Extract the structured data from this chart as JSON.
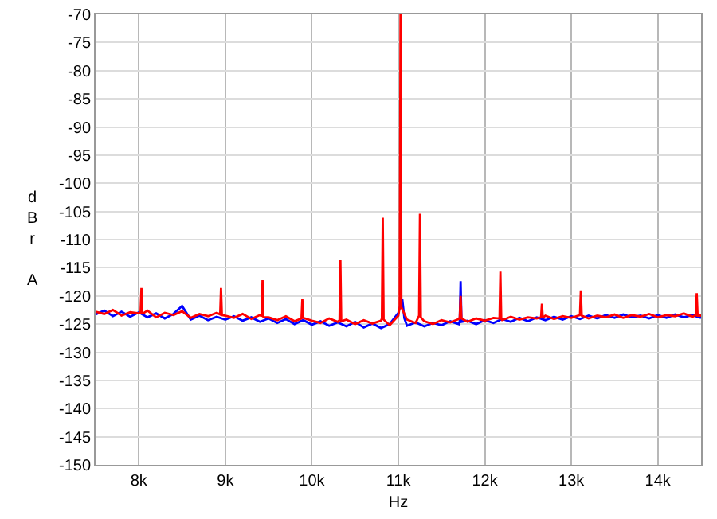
{
  "chart_data": {
    "type": "line",
    "xlabel": "Hz",
    "ylabel": "dBr A",
    "xlim": [
      7500,
      14500
    ],
    "ylim": [
      -150,
      -70
    ],
    "xticks": [
      {
        "value": 8000,
        "label": "8k"
      },
      {
        "value": 9000,
        "label": "9k"
      },
      {
        "value": 10000,
        "label": "10k"
      },
      {
        "value": 11000,
        "label": "11k"
      },
      {
        "value": 12000,
        "label": "12k"
      },
      {
        "value": 13000,
        "label": "13k"
      },
      {
        "value": 14000,
        "label": "14k"
      }
    ],
    "yticks": [
      -150,
      -145,
      -140,
      -135,
      -130,
      -125,
      -120,
      -115,
      -110,
      -105,
      -100,
      -95,
      -90,
      -85,
      -80,
      -75,
      -70
    ],
    "grid": true,
    "marker": "none",
    "line_style": "solid",
    "series": [
      {
        "color": "#0000ff",
        "x": [
          7500,
          7600,
          7700,
          7800,
          7900,
          8000,
          8100,
          8200,
          8300,
          8400,
          8500,
          8600,
          8700,
          8800,
          8900,
          9000,
          9100,
          9200,
          9300,
          9400,
          9500,
          9600,
          9700,
          9800,
          9900,
          10000,
          10100,
          10200,
          10300,
          10400,
          10500,
          10600,
          10700,
          10800,
          10900,
          11000,
          11045,
          11070,
          11100,
          11200,
          11300,
          11400,
          11500,
          11600,
          11700,
          11710,
          11720,
          11730,
          11800,
          11900,
          12000,
          12100,
          12200,
          12300,
          12400,
          12500,
          12600,
          12700,
          12800,
          12900,
          13000,
          13100,
          13200,
          13300,
          13400,
          13500,
          13600,
          13700,
          13800,
          13900,
          14000,
          14100,
          14200,
          14300,
          14400,
          14500
        ],
        "values": [
          -123.3,
          -122.6,
          -123.6,
          -122.8,
          -123.7,
          -122.9,
          -123.8,
          -123.1,
          -124.0,
          -123.2,
          -121.8,
          -124.2,
          -123.5,
          -124.3,
          -123.7,
          -124.2,
          -123.6,
          -124.4,
          -123.8,
          -124.6,
          -124.0,
          -124.8,
          -124.1,
          -125.0,
          -124.3,
          -125.1,
          -124.5,
          -125.3,
          -124.7,
          -125.4,
          -124.6,
          -125.6,
          -124.9,
          -125.7,
          -125.0,
          -123.0,
          -120.5,
          -124.0,
          -125.3,
          -124.7,
          -125.4,
          -124.8,
          -125.2,
          -124.5,
          -125.0,
          -124.5,
          -117.4,
          -124.6,
          -124.4,
          -125.0,
          -124.3,
          -124.8,
          -124.1,
          -124.6,
          -123.9,
          -124.5,
          -123.8,
          -124.3,
          -123.7,
          -124.2,
          -123.6,
          -124.1,
          -123.5,
          -124.0,
          -123.4,
          -123.9,
          -123.3,
          -123.8,
          -123.5,
          -124.0,
          -123.4,
          -123.9,
          -123.3,
          -123.8,
          -123.4,
          -123.9
        ]
      },
      {
        "color": "#ff0000",
        "x": [
          7500,
          7600,
          7700,
          7800,
          7900,
          8000,
          8020,
          8030,
          8040,
          8100,
          8200,
          8300,
          8400,
          8500,
          8600,
          8700,
          8800,
          8900,
          8940,
          8950,
          8960,
          9000,
          9100,
          9200,
          9300,
          9400,
          9420,
          9430,
          9440,
          9500,
          9600,
          9700,
          9800,
          9880,
          9890,
          9900,
          10000,
          10100,
          10200,
          10300,
          10320,
          10330,
          10340,
          10400,
          10500,
          10600,
          10700,
          10800,
          10810,
          10820,
          10830,
          10900,
          11000,
          11015,
          11025,
          11035,
          11100,
          11200,
          11240,
          11250,
          11260,
          11300,
          11400,
          11500,
          11600,
          11700,
          11710,
          11720,
          11730,
          11800,
          11900,
          12000,
          12100,
          12170,
          12180,
          12190,
          12200,
          12300,
          12400,
          12500,
          12600,
          12650,
          12660,
          12670,
          12700,
          12800,
          12900,
          13000,
          13100,
          13110,
          13120,
          13200,
          13300,
          13400,
          13500,
          13600,
          13700,
          13800,
          13900,
          14000,
          14100,
          14200,
          14300,
          14400,
          14440,
          14450,
          14460,
          14500
        ],
        "values": [
          -122.8,
          -123.2,
          -122.5,
          -123.5,
          -122.9,
          -123.1,
          -123.0,
          -118.6,
          -123.2,
          -122.6,
          -123.8,
          -123.0,
          -123.4,
          -122.7,
          -123.9,
          -123.2,
          -123.6,
          -123.0,
          -123.3,
          -118.6,
          -123.4,
          -123.5,
          -123.9,
          -123.2,
          -124.1,
          -123.4,
          -123.6,
          -117.2,
          -123.8,
          -123.8,
          -124.3,
          -123.6,
          -124.5,
          -124.0,
          -120.6,
          -123.9,
          -124.4,
          -124.8,
          -124.0,
          -124.6,
          -124.3,
          -113.6,
          -124.5,
          -124.2,
          -125.0,
          -124.3,
          -124.9,
          -124.4,
          -124.0,
          -106.1,
          -124.2,
          -125.2,
          -123.5,
          -122,
          -70,
          -122,
          -124.2,
          -124.8,
          -123.5,
          -105.4,
          -123.8,
          -124.5,
          -125.0,
          -124.3,
          -124.7,
          -124.1,
          -123.8,
          -120.0,
          -124.0,
          -124.6,
          -124.0,
          -124.4,
          -123.9,
          -124.0,
          -115.7,
          -124.1,
          -124.3,
          -123.7,
          -124.2,
          -123.8,
          -124.0,
          -123.8,
          -121.4,
          -123.9,
          -123.5,
          -124.1,
          -123.6,
          -123.9,
          -123.4,
          -119.0,
          -123.5,
          -124.0,
          -123.5,
          -123.8,
          -123.3,
          -123.9,
          -123.4,
          -123.7,
          -123.2,
          -123.8,
          -123.4,
          -123.6,
          -123.1,
          -123.7,
          -123.4,
          -119.5,
          -123.5,
          -123.5
        ]
      }
    ]
  }
}
